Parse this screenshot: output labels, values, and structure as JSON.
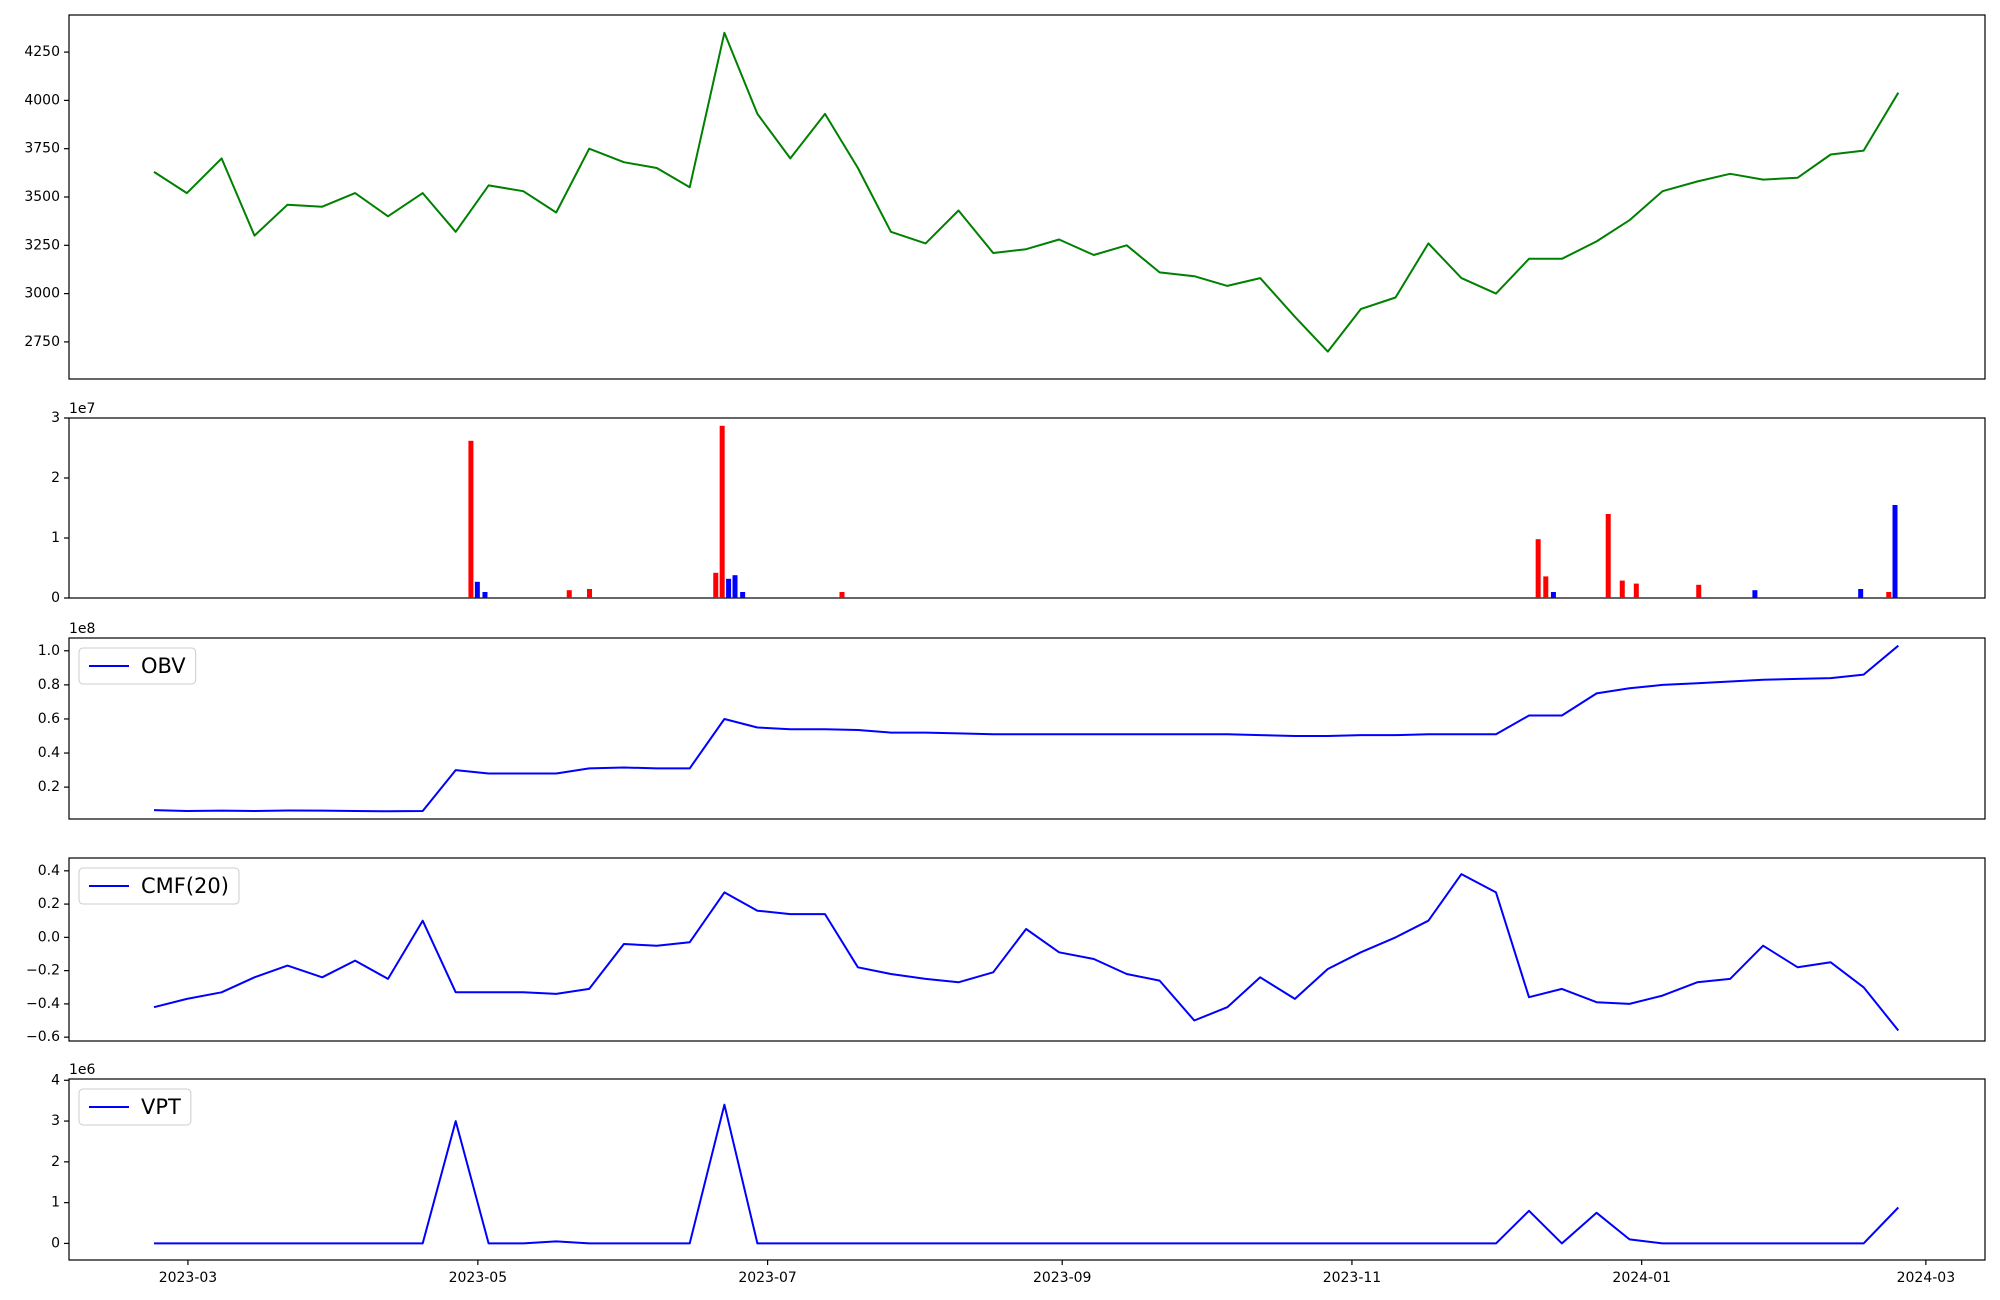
{
  "chart_data": [
    {
      "type": "line",
      "color": "#008000",
      "x": [
        2023.142,
        2023.161,
        2023.181,
        2023.2,
        2023.219,
        2023.239,
        2023.258,
        2023.277,
        2023.297,
        2023.316,
        2023.335,
        2023.355,
        2023.374,
        2023.393,
        2023.413,
        2023.432,
        2023.451,
        2023.471,
        2023.49,
        2023.509,
        2023.529,
        2023.548,
        2023.567,
        2023.587,
        2023.606,
        2023.626,
        2023.645,
        2023.664,
        2023.684,
        2023.703,
        2023.722,
        2023.742,
        2023.761,
        2023.78,
        2023.8,
        2023.819,
        2023.838,
        2023.858,
        2023.877,
        2023.896,
        2023.916,
        2023.935,
        2023.954,
        2023.974,
        2023.993,
        2024.012,
        2024.032,
        2024.051,
        2024.07,
        2024.09,
        2024.109,
        2024.128,
        2024.148
      ],
      "values": [
        3630,
        3520,
        3700,
        3300,
        3460,
        3450,
        3520,
        3400,
        3520,
        3320,
        3560,
        3530,
        3420,
        3750,
        3680,
        3650,
        3550,
        4350,
        3930,
        3700,
        3930,
        3650,
        3320,
        3260,
        3430,
        3210,
        3230,
        3280,
        3200,
        3250,
        3110,
        3090,
        3040,
        3080,
        2880,
        2700,
        2920,
        2980,
        3260,
        3080,
        3000,
        3180,
        3180,
        3270,
        3380,
        3530,
        3580,
        3620,
        3590,
        3600,
        3720,
        3740,
        4040
      ],
      "xlim": [
        2023.093,
        2024.198
      ],
      "ylim": [
        2558,
        4442
      ],
      "yticks": [
        2750,
        3000,
        3250,
        3500,
        3750,
        4000,
        4250
      ]
    },
    {
      "type": "bar",
      "offset_text": "1e7",
      "x": [
        2023.3248,
        2023.3285,
        2023.3329,
        2023.3815,
        2023.3932,
        2023.466,
        2023.4697,
        2023.4734,
        2023.4771,
        2023.4815,
        2023.5388,
        2023.9403,
        2023.9447,
        2023.9491,
        2023.9807,
        2023.9888,
        2023.9969,
        2024.0329,
        2024.0653,
        2024.1263,
        2024.1425,
        2024.1461
      ],
      "values": [
        26200000,
        2700000,
        1000000,
        1300000,
        1500000,
        4200000,
        28700000,
        3200000,
        3800000,
        1000000,
        1000000,
        9800000,
        3600000,
        1000000,
        14000000,
        2900000,
        2400000,
        2200000,
        1300000,
        1500000,
        1000000,
        15500000
      ],
      "colors": [
        "#ff0000",
        "#0000ff",
        "#0000ff",
        "#ff0000",
        "#ff0000",
        "#ff0000",
        "#ff0000",
        "#0000ff",
        "#0000ff",
        "#0000ff",
        "#ff0000",
        "#ff0000",
        "#ff0000",
        "#0000ff",
        "#ff0000",
        "#ff0000",
        "#ff0000",
        "#ff0000",
        "#0000ff",
        "#0000ff",
        "#ff0000",
        "#0000ff"
      ],
      "xlim": [
        2023.093,
        2024.198
      ],
      "ylim": [
        0,
        30000000
      ],
      "yticks": [
        {
          "value": 0,
          "label": "0"
        },
        {
          "value": 10000000,
          "label": "1"
        },
        {
          "value": 20000000,
          "label": "2"
        },
        {
          "value": 30000000,
          "label": "3"
        }
      ]
    },
    {
      "type": "line",
      "offset_text": "1e8",
      "legend": "upper left",
      "x": [
        2023.142,
        2023.161,
        2023.181,
        2023.2,
        2023.219,
        2023.239,
        2023.258,
        2023.277,
        2023.297,
        2023.316,
        2023.335,
        2023.355,
        2023.374,
        2023.393,
        2023.413,
        2023.432,
        2023.451,
        2023.471,
        2023.49,
        2023.509,
        2023.529,
        2023.548,
        2023.567,
        2023.587,
        2023.606,
        2023.626,
        2023.645,
        2023.664,
        2023.684,
        2023.703,
        2023.722,
        2023.742,
        2023.761,
        2023.78,
        2023.8,
        2023.819,
        2023.838,
        2023.858,
        2023.877,
        2023.896,
        2023.916,
        2023.935,
        2023.954,
        2023.974,
        2023.993,
        2024.012,
        2024.032,
        2024.051,
        2024.07,
        2024.09,
        2024.109,
        2024.128,
        2024.148
      ],
      "series": [
        {
          "name": "OBV",
          "color": "#0000ff",
          "values": [
            6500000,
            6000000,
            6200000,
            6000000,
            6300000,
            6200000,
            6000000,
            5800000,
            6000000,
            30000000,
            28000000,
            28000000,
            28000000,
            31000000,
            31500000,
            31000000,
            31000000,
            60000000,
            55000000,
            54000000,
            54000000,
            53500000,
            52000000,
            52000000,
            51500000,
            51000000,
            51000000,
            51000000,
            51000000,
            51000000,
            51000000,
            51000000,
            51000000,
            50500000,
            50000000,
            50000000,
            50500000,
            50500000,
            51000000,
            51000000,
            51000000,
            62000000,
            62000000,
            75000000,
            78000000,
            80000000,
            81000000,
            82000000,
            83000000,
            83500000,
            84000000,
            86000000,
            103000000
          ]
        }
      ],
      "xlim": [
        2023.093,
        2024.198
      ],
      "ylim": [
        1300000,
        107500000
      ],
      "yticks": [
        {
          "value": 20000000,
          "label": "0.2"
        },
        {
          "value": 40000000,
          "label": "0.4"
        },
        {
          "value": 60000000,
          "label": "0.6"
        },
        {
          "value": 80000000,
          "label": "0.8"
        },
        {
          "value": 100000000,
          "label": "1.0"
        }
      ]
    },
    {
      "type": "line",
      "legend": "upper left",
      "x": [
        2023.142,
        2023.161,
        2023.181,
        2023.2,
        2023.219,
        2023.239,
        2023.258,
        2023.277,
        2023.297,
        2023.316,
        2023.335,
        2023.355,
        2023.374,
        2023.393,
        2023.413,
        2023.432,
        2023.451,
        2023.471,
        2023.49,
        2023.509,
        2023.529,
        2023.548,
        2023.567,
        2023.587,
        2023.606,
        2023.626,
        2023.645,
        2023.664,
        2023.684,
        2023.703,
        2023.722,
        2023.742,
        2023.761,
        2023.78,
        2023.8,
        2023.819,
        2023.838,
        2023.858,
        2023.877,
        2023.896,
        2023.916,
        2023.935,
        2023.954,
        2023.974,
        2023.993,
        2024.012,
        2024.032,
        2024.051,
        2024.07,
        2024.09,
        2024.109,
        2024.128,
        2024.148
      ],
      "series": [
        {
          "name": "CMF(20)",
          "color": "#0000ff",
          "values": [
            -0.42,
            -0.37,
            -0.33,
            -0.24,
            -0.17,
            -0.24,
            -0.14,
            -0.25,
            0.1,
            -0.33,
            -0.33,
            -0.33,
            -0.34,
            -0.31,
            -0.04,
            -0.05,
            -0.03,
            0.27,
            0.16,
            0.14,
            0.14,
            -0.18,
            -0.22,
            -0.25,
            -0.27,
            -0.21,
            0.05,
            -0.09,
            -0.13,
            -0.22,
            -0.26,
            -0.5,
            -0.42,
            -0.24,
            -0.37,
            -0.19,
            -0.09,
            0.0,
            0.1,
            0.38,
            0.27,
            -0.36,
            -0.31,
            -0.39,
            -0.4,
            -0.35,
            -0.27,
            -0.25,
            -0.05,
            -0.18,
            -0.15,
            -0.3,
            -0.56
          ]
        }
      ],
      "xlim": [
        2023.093,
        2024.198
      ],
      "ylim": [
        -0.623,
        0.477
      ],
      "yticks": [
        {
          "value": -0.6,
          "label": "−0.6"
        },
        {
          "value": -0.4,
          "label": "−0.4"
        },
        {
          "value": -0.2,
          "label": "−0.2"
        },
        {
          "value": 0,
          "label": "0.0"
        },
        0.2,
        0.4
      ]
    },
    {
      "type": "line",
      "offset_text": "1e6",
      "legend": "upper left",
      "x": [
        2023.142,
        2023.161,
        2023.181,
        2023.2,
        2023.219,
        2023.239,
        2023.258,
        2023.277,
        2023.297,
        2023.316,
        2023.335,
        2023.355,
        2023.374,
        2023.393,
        2023.413,
        2023.432,
        2023.451,
        2023.471,
        2023.49,
        2023.509,
        2023.529,
        2023.548,
        2023.567,
        2023.587,
        2023.606,
        2023.626,
        2023.645,
        2023.664,
        2023.684,
        2023.703,
        2023.722,
        2023.742,
        2023.761,
        2023.78,
        2023.8,
        2023.819,
        2023.838,
        2023.858,
        2023.877,
        2023.896,
        2023.916,
        2023.935,
        2023.954,
        2023.974,
        2023.993,
        2024.012,
        2024.032,
        2024.051,
        2024.07,
        2024.09,
        2024.109,
        2024.128,
        2024.148
      ],
      "series": [
        {
          "name": "VPT",
          "color": "#0000ff",
          "values": [
            0,
            0,
            0,
            0,
            0,
            0,
            0,
            0,
            0,
            3000000,
            0,
            0,
            50000,
            0,
            0,
            0,
            0,
            3400000,
            0,
            0,
            0,
            0,
            0,
            0,
            0,
            0,
            0,
            0,
            0,
            0,
            0,
            0,
            0,
            0,
            0,
            0,
            0,
            0,
            0,
            0,
            0,
            800000,
            0,
            750000,
            100000,
            0,
            0,
            0,
            0,
            0,
            0,
            0,
            880000
          ]
        }
      ],
      "xlim": [
        2023.093,
        2024.198
      ],
      "ylim": [
        -406000,
        4031000
      ],
      "yticks": [
        {
          "value": 0,
          "label": "0"
        },
        {
          "value": 1000000,
          "label": "1"
        },
        {
          "value": 2000000,
          "label": "2"
        },
        {
          "value": 3000000,
          "label": "3"
        },
        {
          "value": 4000000,
          "label": "4"
        }
      ],
      "xticks": [
        {
          "value": 2023.1616,
          "label": "2023-03"
        },
        {
          "value": 2023.3288,
          "label": "2023-05"
        },
        {
          "value": 2023.4959,
          "label": "2023-07"
        },
        {
          "value": 2023.6658,
          "label": "2023-09"
        },
        {
          "value": 2023.8329,
          "label": "2023-11"
        },
        {
          "value": 2024.0,
          "label": "2024-01"
        },
        {
          "value": 2024.1639,
          "label": "2024-03"
        }
      ]
    }
  ]
}
